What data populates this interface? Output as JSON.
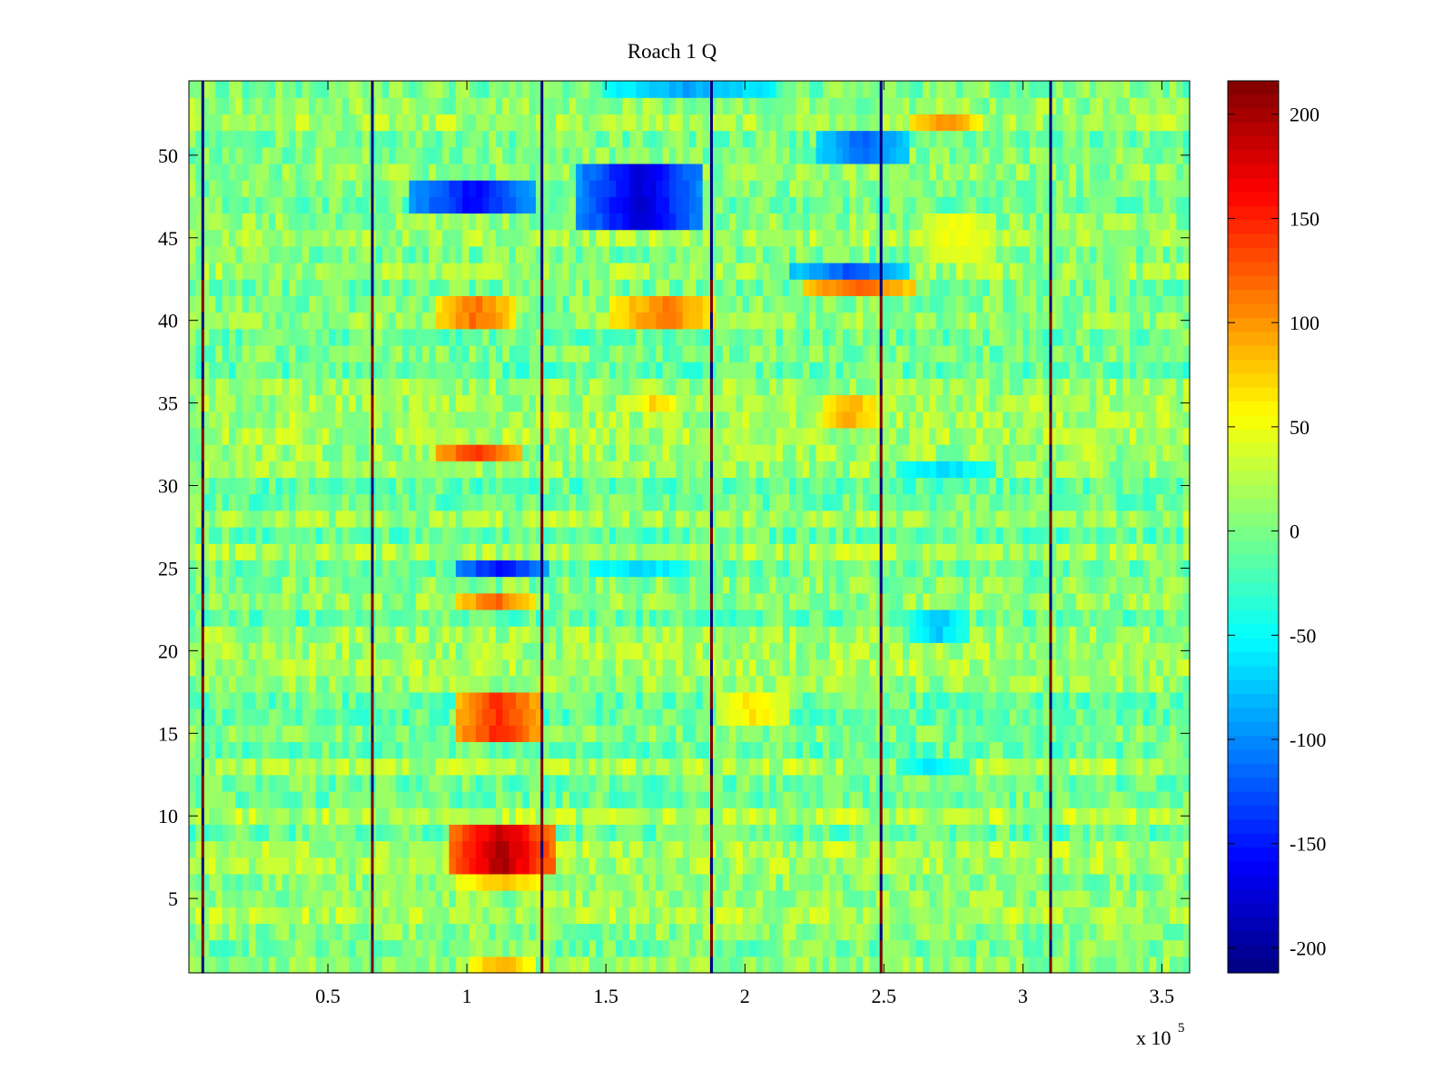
{
  "chart_data": {
    "type": "heatmap",
    "title": "Roach 1 Q",
    "xlabel": "",
    "ylabel": "",
    "xlim": [
      0,
      360000
    ],
    "ylim": [
      0.5,
      54.5
    ],
    "x_ticks": [
      {
        "value": 50000,
        "label": "0.5"
      },
      {
        "value": 100000,
        "label": "1"
      },
      {
        "value": 150000,
        "label": "1.5"
      },
      {
        "value": 200000,
        "label": "2"
      },
      {
        "value": 250000,
        "label": "2.5"
      },
      {
        "value": 300000,
        "label": "3"
      },
      {
        "value": 350000,
        "label": "3.5"
      }
    ],
    "x_exponent_label": "x 10",
    "x_exponent_power": "5",
    "y_ticks": [
      {
        "value": 5,
        "label": "5"
      },
      {
        "value": 10,
        "label": "10"
      },
      {
        "value": 15,
        "label": "15"
      },
      {
        "value": 20,
        "label": "20"
      },
      {
        "value": 25,
        "label": "25"
      },
      {
        "value": 30,
        "label": "30"
      },
      {
        "value": 35,
        "label": "35"
      },
      {
        "value": 40,
        "label": "40"
      },
      {
        "value": 45,
        "label": "45"
      },
      {
        "value": 50,
        "label": "50"
      }
    ],
    "colormap": "jet",
    "clim": [
      -212,
      216
    ],
    "colorbar_ticks": [
      {
        "value": 200,
        "label": "200"
      },
      {
        "value": 150,
        "label": "150"
      },
      {
        "value": 100,
        "label": "100"
      },
      {
        "value": 50,
        "label": "50"
      },
      {
        "value": 0,
        "label": "0"
      },
      {
        "value": -50,
        "label": "-50"
      },
      {
        "value": -100,
        "label": "-100"
      },
      {
        "value": -150,
        "label": "-150"
      },
      {
        "value": -200,
        "label": "-200"
      }
    ],
    "rows": 54,
    "background_level": 5,
    "vertical_stripes_x": [
      5000,
      66000,
      127000,
      188000,
      249000,
      310000
    ],
    "blobs": [
      {
        "x": [
          93000,
          132000
        ],
        "y": [
          7,
          10
        ],
        "value": 195
      },
      {
        "x": [
          95000,
          128000
        ],
        "y": [
          6,
          7
        ],
        "value": 80
      },
      {
        "x": [
          100000,
          125000
        ],
        "y": [
          1,
          2
        ],
        "value": 90
      },
      {
        "x": [
          95000,
          128000
        ],
        "y": [
          15,
          18
        ],
        "value": 150
      },
      {
        "x": [
          96000,
          125000
        ],
        "y": [
          23,
          24
        ],
        "value": 120
      },
      {
        "x": [
          95000,
          130000
        ],
        "y": [
          25,
          26
        ],
        "value": -160
      },
      {
        "x": [
          145000,
          180000
        ],
        "y": [
          25,
          26
        ],
        "value": -70
      },
      {
        "x": [
          88000,
          120000
        ],
        "y": [
          32,
          33
        ],
        "value": 140
      },
      {
        "x": [
          88000,
          118000
        ],
        "y": [
          40,
          42
        ],
        "value": 115
      },
      {
        "x": [
          152000,
          190000
        ],
        "y": [
          40,
          42
        ],
        "value": 110
      },
      {
        "x": [
          140000,
          185000
        ],
        "y": [
          46,
          50
        ],
        "value": -180
      },
      {
        "x": [
          80000,
          125000
        ],
        "y": [
          47,
          49
        ],
        "value": -160
      },
      {
        "x": [
          215000,
          260000
        ],
        "y": [
          43,
          44
        ],
        "value": -130
      },
      {
        "x": [
          220000,
          262000
        ],
        "y": [
          42,
          43
        ],
        "value": 130
      },
      {
        "x": [
          225000,
          260000
        ],
        "y": [
          50,
          52
        ],
        "value": -120
      },
      {
        "x": [
          260000,
          285000
        ],
        "y": [
          52,
          53
        ],
        "value": 100
      },
      {
        "x": [
          150000,
          210000
        ],
        "y": [
          54,
          55
        ],
        "value": -90
      },
      {
        "x": [
          228000,
          248000
        ],
        "y": [
          34,
          36
        ],
        "value": 90
      },
      {
        "x": [
          255000,
          290000
        ],
        "y": [
          31,
          32
        ],
        "value": -70
      },
      {
        "x": [
          260000,
          280000
        ],
        "y": [
          21,
          23
        ],
        "value": -75
      },
      {
        "x": [
          190000,
          215000
        ],
        "y": [
          16,
          18
        ],
        "value": 70
      },
      {
        "x": [
          255000,
          280000
        ],
        "y": [
          13,
          14
        ],
        "value": -70
      },
      {
        "x": [
          265000,
          290000
        ],
        "y": [
          44,
          47
        ],
        "value": 50
      },
      {
        "x": [
          160000,
          175000
        ],
        "y": [
          35,
          36
        ],
        "value": 70
      }
    ]
  }
}
